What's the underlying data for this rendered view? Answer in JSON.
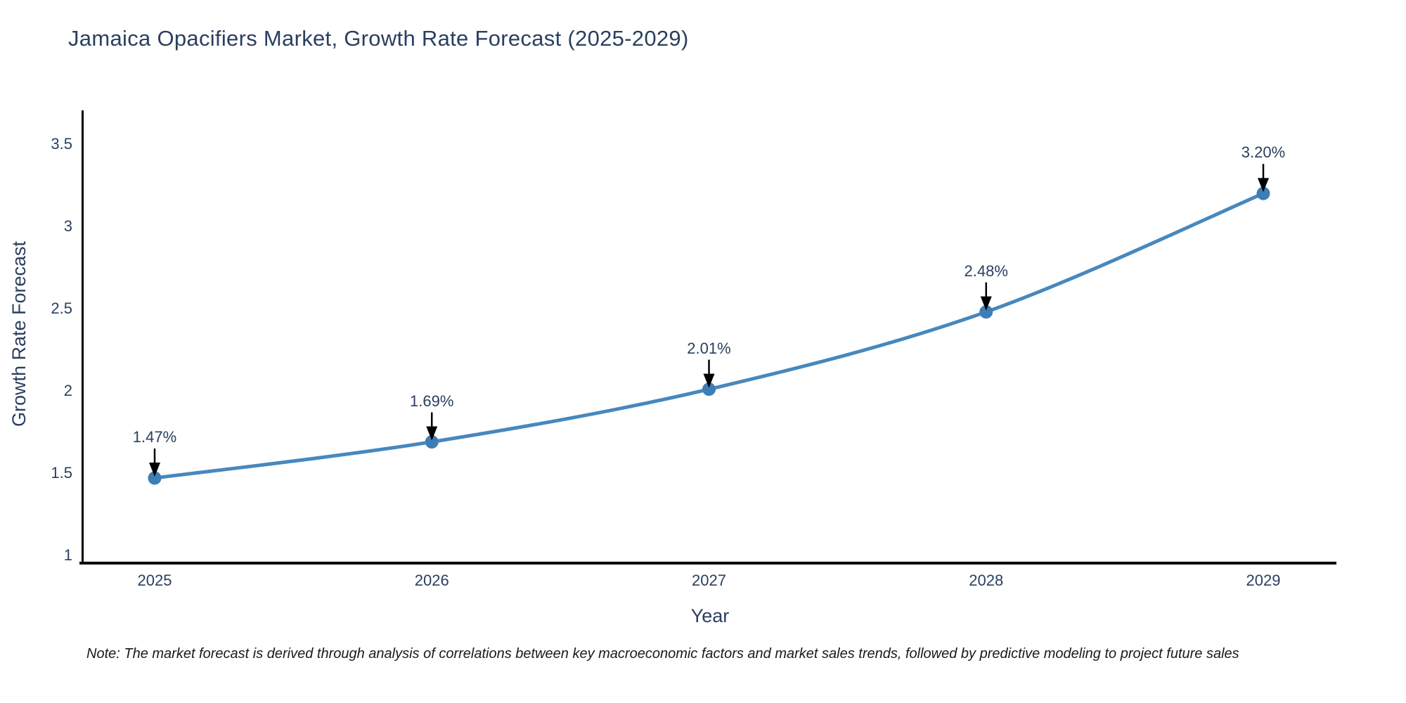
{
  "title": {
    "text": "Jamaica Opacifiers Market, Growth Rate Forecast (2025-2029)",
    "color": "#2a3f5f"
  },
  "note": {
    "text": "Note: The market forecast is derived through analysis of correlations between key macroeconomic factors and market sales trends, followed by predictive modeling to project future sales"
  },
  "chart_data": {
    "type": "line",
    "title": "Jamaica Opacifiers Market, Growth Rate Forecast (2025-2029)",
    "categories": [
      "2025",
      "2026",
      "2027",
      "2028",
      "2029"
    ],
    "values": [
      1.47,
      1.69,
      2.01,
      2.48,
      3.2
    ],
    "point_labels": [
      "1.47%",
      "1.69%",
      "2.01%",
      "2.48%",
      "3.20%"
    ],
    "series": [
      {
        "name": "Growth Rate Forecast",
        "values": [
          1.47,
          1.69,
          2.01,
          2.48,
          3.2
        ]
      }
    ],
    "xlabel": "Year",
    "ylabel": "Growth Rate Forecast",
    "ytick_labels": [
      "1",
      "1.5",
      "2",
      "2.5",
      "3",
      "3.5"
    ],
    "ytick_values": [
      1,
      1.5,
      2,
      2.5,
      3,
      3.5
    ],
    "ylim": [
      1,
      3.5
    ],
    "grid": false,
    "legend": "none",
    "line_shape": "spline",
    "annotations_style": "value label with downward arrow above each point",
    "colors": {
      "line": "#4788bd",
      "marker": "#3d7eb4",
      "arrow": "#000000",
      "axis_line": "#000000",
      "text": "#2a3f5f",
      "note_text": "#1a1a1a",
      "background": "#ffffff"
    }
  }
}
